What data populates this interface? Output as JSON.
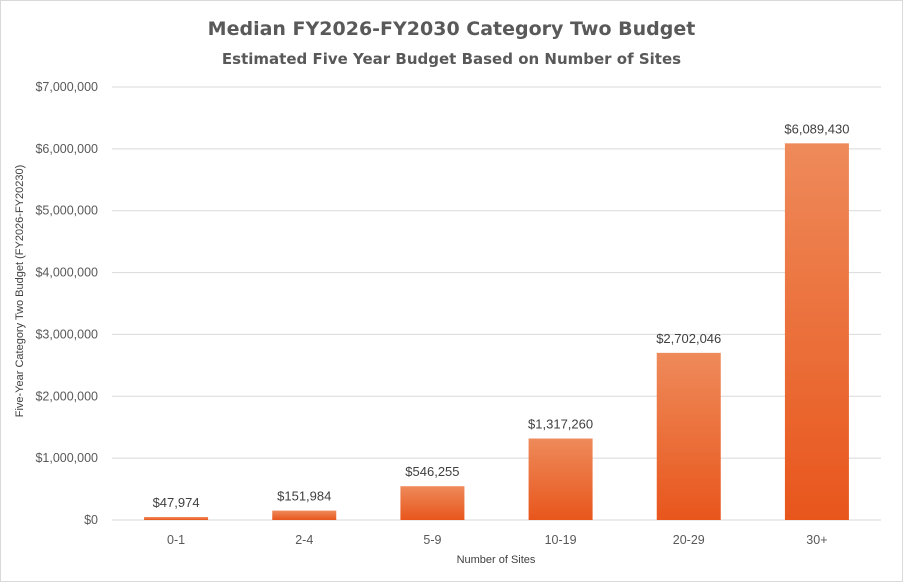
{
  "chart_data": {
    "type": "bar",
    "title": "Median FY2026-FY2030 Category Two Budget",
    "subtitle": "Estimated Five Year Budget Based on Number of Sites",
    "xlabel": "Number of Sites",
    "ylabel": "Five-Year Category Two Budget (FY2026-FY20230)",
    "categories": [
      "0-1",
      "2-4",
      "5-9",
      "10-19",
      "20-29",
      "30+"
    ],
    "values": [
      47974,
      151984,
      546255,
      1317260,
      2702046,
      6089430
    ],
    "data_labels": [
      "$47,974",
      "$151,984",
      "$546,255",
      "$1,317,260",
      "$2,702,046",
      "$6,089,430"
    ],
    "ylim": [
      0,
      7000000
    ],
    "yticks": [
      0,
      1000000,
      2000000,
      3000000,
      4000000,
      5000000,
      6000000,
      7000000
    ],
    "ytick_labels": [
      "$0",
      "$1,000,000",
      "$2,000,000",
      "$3,000,000",
      "$4,000,000",
      "$5,000,000",
      "$6,000,000",
      "$7,000,000"
    ],
    "grid": true,
    "legend": "none",
    "colors": {
      "bar_top": "#ee8a5a",
      "bar_bottom": "#e8561c",
      "grid": "#d9d9d9",
      "text": "#595959"
    }
  }
}
